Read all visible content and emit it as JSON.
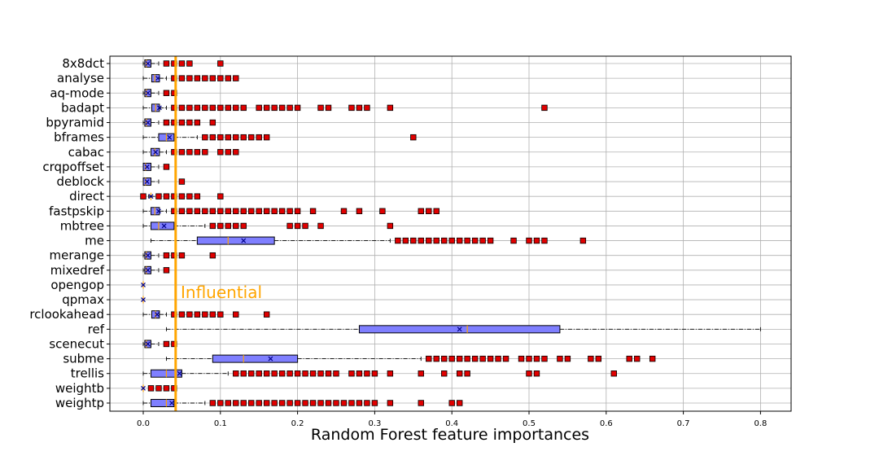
{
  "chart_data": {
    "type": "boxplot",
    "orientation": "horizontal",
    "title": "",
    "xlabel": "Random Forest feature importances",
    "ylabel": "",
    "xlim": [
      -0.042,
      0.842
    ],
    "xticks": [
      "0.0",
      "0.1",
      "0.2",
      "0.3",
      "0.4",
      "0.5",
      "0.6",
      "0.7",
      "0.8"
    ],
    "grid": true,
    "colors": {
      "box_fill": "#7f7fff",
      "box_edge": "#000000",
      "outlier_fill": "#e00000",
      "median": "#FFA500",
      "threshold_line": "#FFA500",
      "grid": "#b0b0b0"
    },
    "threshold": {
      "value": 0.042,
      "label": "Influential"
    },
    "features": [
      {
        "name": "8x8dct",
        "q1": 0.002,
        "median": 0.004,
        "q3": 0.01,
        "mean": 0.006,
        "whisker_low": 0.0,
        "whisker_high": 0.02,
        "outliers": [
          0.03,
          0.04,
          0.05,
          0.06,
          0.1
        ]
      },
      {
        "name": "analyse",
        "q1": 0.011,
        "median": 0.015,
        "q3": 0.021,
        "mean": 0.019,
        "whisker_low": 0.0,
        "whisker_high": 0.03,
        "outliers": [
          0.04,
          0.05,
          0.06,
          0.07,
          0.08,
          0.09,
          0.1,
          0.11,
          0.12
        ]
      },
      {
        "name": "aq-mode",
        "q1": 0.002,
        "median": 0.004,
        "q3": 0.01,
        "mean": 0.006,
        "whisker_low": 0.0,
        "whisker_high": 0.02,
        "outliers": [
          0.03,
          0.04
        ]
      },
      {
        "name": "badapt",
        "q1": 0.011,
        "median": 0.016,
        "q3": 0.021,
        "mean": 0.021,
        "whisker_low": 0.0,
        "whisker_high": 0.03,
        "outliers": [
          0.04,
          0.05,
          0.06,
          0.07,
          0.08,
          0.09,
          0.1,
          0.11,
          0.12,
          0.13,
          0.15,
          0.16,
          0.17,
          0.18,
          0.19,
          0.2,
          0.23,
          0.24,
          0.27,
          0.28,
          0.29,
          0.32,
          0.52
        ]
      },
      {
        "name": "bpyramid",
        "q1": 0.002,
        "median": 0.004,
        "q3": 0.01,
        "mean": 0.006,
        "whisker_low": 0.0,
        "whisker_high": 0.02,
        "outliers": [
          0.03,
          0.04,
          0.05,
          0.06,
          0.07,
          0.09
        ]
      },
      {
        "name": "bframes",
        "q1": 0.02,
        "median": 0.03,
        "q3": 0.04,
        "mean": 0.034,
        "whisker_low": 0.0,
        "whisker_high": 0.07,
        "outliers": [
          0.08,
          0.09,
          0.1,
          0.11,
          0.12,
          0.13,
          0.14,
          0.15,
          0.16,
          0.35
        ]
      },
      {
        "name": "cabac",
        "q1": 0.01,
        "median": 0.015,
        "q3": 0.021,
        "mean": 0.016,
        "whisker_low": 0.0,
        "whisker_high": 0.03,
        "outliers": [
          0.04,
          0.05,
          0.06,
          0.07,
          0.08,
          0.1,
          0.11,
          0.12
        ]
      },
      {
        "name": "crqpoffset",
        "q1": 0.0,
        "median": 0.003,
        "q3": 0.01,
        "mean": 0.005,
        "whisker_low": 0.0,
        "whisker_high": 0.02,
        "outliers": [
          0.03
        ]
      },
      {
        "name": "deblock",
        "q1": 0.0,
        "median": 0.003,
        "q3": 0.01,
        "mean": 0.005,
        "whisker_low": 0.0,
        "whisker_high": 0.02,
        "outliers": [
          0.05
        ]
      },
      {
        "name": "direct",
        "q1": 0.01,
        "median": 0.01,
        "q3": 0.01,
        "mean": 0.01,
        "whisker_low": 0.007,
        "whisker_high": 0.02,
        "outliers": [
          0.0,
          0.02,
          0.03,
          0.04,
          0.05,
          0.06,
          0.07,
          0.1
        ]
      },
      {
        "name": "fastpskip",
        "q1": 0.01,
        "median": 0.015,
        "q3": 0.021,
        "mean": 0.02,
        "whisker_low": 0.0,
        "whisker_high": 0.03,
        "outliers": [
          0.04,
          0.05,
          0.06,
          0.07,
          0.08,
          0.09,
          0.1,
          0.11,
          0.12,
          0.13,
          0.14,
          0.15,
          0.16,
          0.17,
          0.18,
          0.19,
          0.2,
          0.22,
          0.26,
          0.28,
          0.31,
          0.36,
          0.37,
          0.38
        ]
      },
      {
        "name": "mbtree",
        "q1": 0.01,
        "median": 0.02,
        "q3": 0.04,
        "mean": 0.027,
        "whisker_low": 0.0,
        "whisker_high": 0.08,
        "outliers": [
          0.09,
          0.1,
          0.11,
          0.12,
          0.13,
          0.19,
          0.2,
          0.21,
          0.23,
          0.32
        ]
      },
      {
        "name": "me",
        "q1": 0.07,
        "median": 0.11,
        "q3": 0.17,
        "mean": 0.13,
        "whisker_low": 0.01,
        "whisker_high": 0.32,
        "outliers": [
          0.33,
          0.34,
          0.35,
          0.36,
          0.37,
          0.38,
          0.39,
          0.4,
          0.41,
          0.42,
          0.43,
          0.44,
          0.45,
          0.48,
          0.5,
          0.51,
          0.52,
          0.57
        ]
      },
      {
        "name": "merange",
        "q1": 0.002,
        "median": 0.004,
        "q3": 0.01,
        "mean": 0.006,
        "whisker_low": 0.0,
        "whisker_high": 0.02,
        "outliers": [
          0.03,
          0.04,
          0.05,
          0.09
        ]
      },
      {
        "name": "mixedref",
        "q1": 0.002,
        "median": 0.004,
        "q3": 0.01,
        "mean": 0.006,
        "whisker_low": 0.0,
        "whisker_high": 0.02,
        "outliers": [
          0.03
        ]
      },
      {
        "name": "opengop",
        "q1": 0.0,
        "median": 0.0,
        "q3": 0.0,
        "mean": 0.0,
        "whisker_low": 0.0,
        "whisker_high": 0.0,
        "outliers": []
      },
      {
        "name": "qpmax",
        "q1": 0.0,
        "median": 0.0,
        "q3": 0.0,
        "mean": 0.0,
        "whisker_low": 0.0,
        "whisker_high": 0.0,
        "outliers": []
      },
      {
        "name": "rclookahead",
        "q1": 0.011,
        "median": 0.016,
        "q3": 0.021,
        "mean": 0.018,
        "whisker_low": 0.0,
        "whisker_high": 0.03,
        "outliers": [
          0.04,
          0.05,
          0.06,
          0.07,
          0.08,
          0.09,
          0.1,
          0.12,
          0.16
        ]
      },
      {
        "name": "ref",
        "q1": 0.28,
        "median": 0.42,
        "q3": 0.54,
        "mean": 0.41,
        "whisker_low": 0.03,
        "whisker_high": 0.8,
        "outliers": []
      },
      {
        "name": "scenecut",
        "q1": 0.002,
        "median": 0.004,
        "q3": 0.01,
        "mean": 0.006,
        "whisker_low": 0.0,
        "whisker_high": 0.02,
        "outliers": [
          0.03,
          0.04
        ]
      },
      {
        "name": "subme",
        "q1": 0.09,
        "median": 0.13,
        "q3": 0.2,
        "mean": 0.165,
        "whisker_low": 0.03,
        "whisker_high": 0.36,
        "outliers": [
          0.37,
          0.38,
          0.39,
          0.4,
          0.41,
          0.42,
          0.43,
          0.44,
          0.45,
          0.46,
          0.47,
          0.49,
          0.5,
          0.51,
          0.52,
          0.54,
          0.55,
          0.58,
          0.59,
          0.63,
          0.64,
          0.66
        ]
      },
      {
        "name": "trellis",
        "q1": 0.01,
        "median": 0.03,
        "q3": 0.05,
        "mean": 0.047,
        "whisker_low": 0.0,
        "whisker_high": 0.11,
        "outliers": [
          0.12,
          0.13,
          0.14,
          0.15,
          0.16,
          0.17,
          0.18,
          0.19,
          0.2,
          0.21,
          0.22,
          0.23,
          0.24,
          0.25,
          0.27,
          0.28,
          0.29,
          0.3,
          0.32,
          0.36,
          0.39,
          0.41,
          0.42,
          0.5,
          0.51,
          0.61
        ]
      },
      {
        "name": "weightb",
        "q1": 0.0,
        "median": 0.0,
        "q3": 0.0,
        "mean": 0.0,
        "whisker_low": 0.0,
        "whisker_high": 0.0,
        "outliers": [
          0.01,
          0.02,
          0.03,
          0.04
        ]
      },
      {
        "name": "weightp",
        "q1": 0.01,
        "median": 0.03,
        "q3": 0.04,
        "mean": 0.037,
        "whisker_low": 0.0,
        "whisker_high": 0.08,
        "outliers": [
          0.09,
          0.1,
          0.11,
          0.12,
          0.13,
          0.14,
          0.15,
          0.16,
          0.17,
          0.18,
          0.19,
          0.2,
          0.21,
          0.22,
          0.23,
          0.24,
          0.25,
          0.26,
          0.27,
          0.28,
          0.29,
          0.3,
          0.32,
          0.36,
          0.4,
          0.41
        ]
      }
    ]
  }
}
